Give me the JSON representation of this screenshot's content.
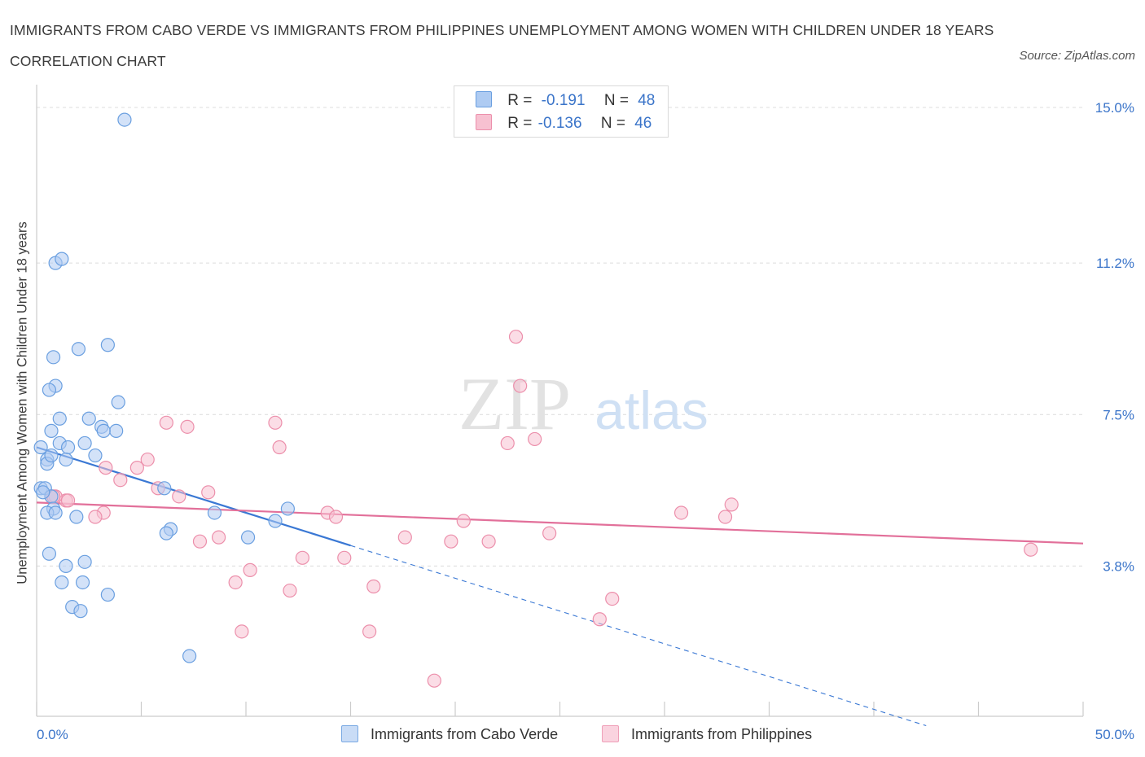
{
  "title": "IMMIGRANTS FROM CABO VERDE VS IMMIGRANTS FROM PHILIPPINES UNEMPLOYMENT AMONG WOMEN WITH CHILDREN UNDER 18 YEARS CORRELATION CHART",
  "source": "Source: ZipAtlas.com",
  "watermark": {
    "zip": "ZIP",
    "atlas": "atlas"
  },
  "legend": {
    "series1": {
      "r_label": "R =",
      "r_value": "-0.191",
      "n_label": "N =",
      "n_value": "48"
    },
    "series2": {
      "r_label": "R =",
      "r_value": "-0.136",
      "n_label": "N =",
      "n_value": "46"
    }
  },
  "colors": {
    "blue_fill": "#aecbf2",
    "blue_edge": "#6a9fe0",
    "blue_line": "#3a78d4",
    "pink_fill": "#f7c1d1",
    "pink_edge": "#ec8fab",
    "pink_line": "#e2709a",
    "tick_label": "#3a74c9",
    "grid": "#dcdcdc",
    "axis": "#cccccc"
  },
  "chart_data": {
    "type": "scatter",
    "title": "IMMIGRANTS FROM CABO VERDE VS IMMIGRANTS FROM PHILIPPINES UNEMPLOYMENT AMONG WOMEN WITH CHILDREN UNDER 18 YEARS CORRELATION CHART",
    "xlabel": "",
    "ylabel": "Unemployment Among Women with Children Under 18 years",
    "xlim": [
      0,
      50
    ],
    "ylim": [
      0,
      15.0
    ],
    "x_tick_labels": [
      "0.0%",
      "50.0%"
    ],
    "y_ticks": [
      3.8,
      7.5,
      11.2,
      15.0
    ],
    "y_tick_labels": [
      "3.8%",
      "7.5%",
      "11.2%",
      "15.0%"
    ],
    "grid": true,
    "legend_position": "top-center",
    "series": [
      {
        "name": "Immigrants from Cabo Verde",
        "r": -0.191,
        "n": 48,
        "trend": {
          "x0": 0.0,
          "y0": 6.7,
          "x_solid_end": 15.0,
          "x_dash_end": 42.5
        },
        "points": [
          [
            4.2,
            14.7
          ],
          [
            0.9,
            11.2
          ],
          [
            1.2,
            11.3
          ],
          [
            2.0,
            9.1
          ],
          [
            3.4,
            9.2
          ],
          [
            0.8,
            8.9
          ],
          [
            0.9,
            8.2
          ],
          [
            0.6,
            8.1
          ],
          [
            3.9,
            7.8
          ],
          [
            1.1,
            7.4
          ],
          [
            2.5,
            7.4
          ],
          [
            0.7,
            7.1
          ],
          [
            3.1,
            7.2
          ],
          [
            3.8,
            7.1
          ],
          [
            3.2,
            7.1
          ],
          [
            1.1,
            6.8
          ],
          [
            2.3,
            6.8
          ],
          [
            1.5,
            6.7
          ],
          [
            2.8,
            6.5
          ],
          [
            0.2,
            6.7
          ],
          [
            0.5,
            6.4
          ],
          [
            1.4,
            6.4
          ],
          [
            0.5,
            6.3
          ],
          [
            0.2,
            5.7
          ],
          [
            0.4,
            5.7
          ],
          [
            6.1,
            5.7
          ],
          [
            0.7,
            5.5
          ],
          [
            0.8,
            5.2
          ],
          [
            0.5,
            5.1
          ],
          [
            0.9,
            5.1
          ],
          [
            1.9,
            5.0
          ],
          [
            8.5,
            5.1
          ],
          [
            12.0,
            5.2
          ],
          [
            11.4,
            4.9
          ],
          [
            6.4,
            4.7
          ],
          [
            6.2,
            4.6
          ],
          [
            10.1,
            4.5
          ],
          [
            0.6,
            4.1
          ],
          [
            2.3,
            3.9
          ],
          [
            1.4,
            3.8
          ],
          [
            1.2,
            3.4
          ],
          [
            2.2,
            3.4
          ],
          [
            3.4,
            3.1
          ],
          [
            1.7,
            2.8
          ],
          [
            2.1,
            2.7
          ],
          [
            7.3,
            1.6
          ],
          [
            0.3,
            5.6
          ],
          [
            0.7,
            6.5
          ]
        ]
      },
      {
        "name": "Immigrants from Philippines",
        "r": -0.136,
        "n": 46,
        "trend": {
          "x0": 0.0,
          "y0": 5.35,
          "x1": 50.0,
          "y1": 4.35
        },
        "points": [
          [
            22.9,
            9.4
          ],
          [
            23.1,
            8.2
          ],
          [
            6.2,
            7.3
          ],
          [
            11.4,
            7.3
          ],
          [
            7.2,
            7.2
          ],
          [
            23.8,
            6.9
          ],
          [
            22.5,
            6.8
          ],
          [
            11.6,
            6.7
          ],
          [
            5.3,
            6.4
          ],
          [
            4.8,
            6.2
          ],
          [
            3.3,
            6.2
          ],
          [
            4.0,
            5.9
          ],
          [
            5.8,
            5.7
          ],
          [
            6.8,
            5.5
          ],
          [
            8.2,
            5.6
          ],
          [
            0.7,
            5.5
          ],
          [
            1.4,
            5.4
          ],
          [
            0.9,
            5.5
          ],
          [
            0.8,
            5.5
          ],
          [
            33.2,
            5.3
          ],
          [
            32.9,
            5.0
          ],
          [
            30.8,
            5.1
          ],
          [
            3.2,
            5.1
          ],
          [
            2.8,
            5.0
          ],
          [
            13.9,
            5.1
          ],
          [
            14.3,
            5.0
          ],
          [
            20.4,
            4.9
          ],
          [
            17.6,
            4.5
          ],
          [
            19.8,
            4.4
          ],
          [
            21.6,
            4.4
          ],
          [
            24.5,
            4.6
          ],
          [
            8.7,
            4.5
          ],
          [
            7.8,
            4.4
          ],
          [
            47.5,
            4.2
          ],
          [
            12.7,
            4.0
          ],
          [
            14.7,
            4.0
          ],
          [
            10.2,
            3.7
          ],
          [
            9.5,
            3.4
          ],
          [
            12.1,
            3.2
          ],
          [
            16.1,
            3.3
          ],
          [
            27.5,
            3.0
          ],
          [
            26.9,
            2.5
          ],
          [
            9.8,
            2.2
          ],
          [
            15.9,
            2.2
          ],
          [
            19.0,
            1.0
          ],
          [
            1.5,
            5.4
          ]
        ]
      }
    ]
  }
}
